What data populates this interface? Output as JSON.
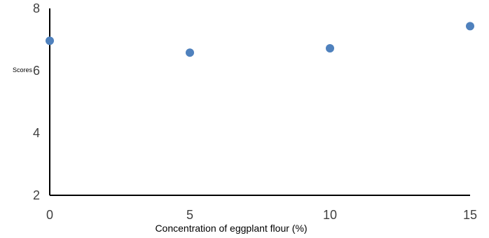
{
  "chart_data": {
    "type": "scatter",
    "title": "",
    "xlabel": "Concentration of eggplant flour (%)",
    "ylabel": "Scores",
    "xlim": [
      0,
      15
    ],
    "ylim": [
      2,
      8
    ],
    "xticks": [
      "0",
      "5",
      "10",
      "15"
    ],
    "yticks": [
      "2",
      "4",
      "6",
      "8"
    ],
    "grid": false,
    "legend": "none",
    "series": [
      {
        "color": "#4F81BD",
        "x": [
          0,
          5,
          10,
          15
        ],
        "y": [
          6.96,
          6.58,
          6.72,
          7.43
        ]
      }
    ]
  }
}
